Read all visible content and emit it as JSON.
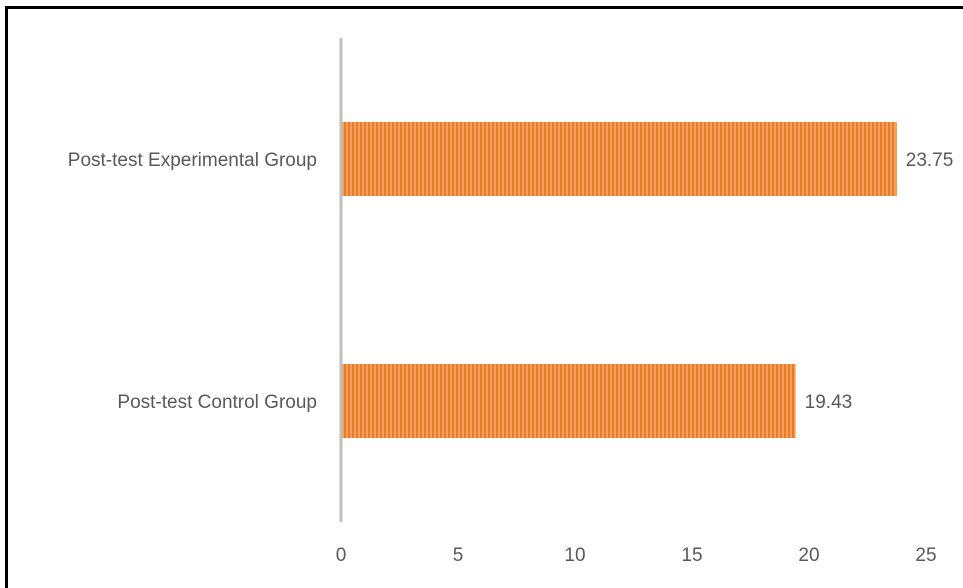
{
  "chart_data": {
    "type": "bar",
    "orientation": "horizontal",
    "title": "",
    "xlabel": "",
    "ylabel": "",
    "categories": [
      "Post-test Control Group",
      "Post-test Experimental Group"
    ],
    "values": [
      19.43,
      23.75
    ],
    "value_labels": [
      "19.43",
      "23.75"
    ],
    "xlim": [
      0,
      25
    ],
    "xticks": [
      0,
      5,
      10,
      15,
      20,
      25
    ],
    "grid": false,
    "legend": "none",
    "colors": {
      "bar_fill": "#f4a05a",
      "bar_stripe": "#e87a2e",
      "axis": "#bfbfbf",
      "text": "#595959"
    }
  }
}
